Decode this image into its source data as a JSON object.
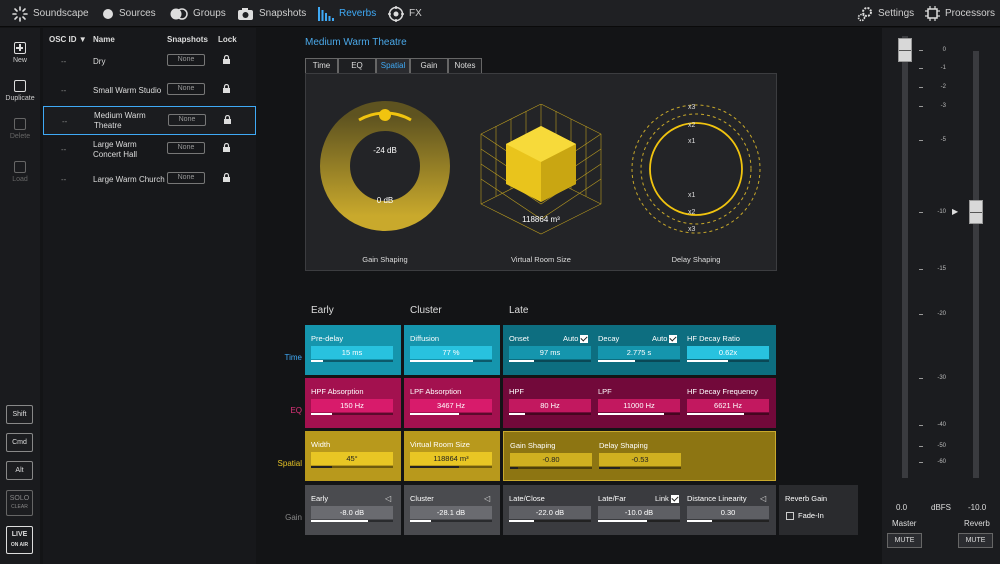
{
  "nav": {
    "soundscape": "Soundscape",
    "sources": "Sources",
    "groups": "Groups",
    "snapshots": "Snapshots",
    "reverbs": "Reverbs",
    "fx": "FX",
    "settings": "Settings",
    "processors": "Processors"
  },
  "leftbar": {
    "new": "New",
    "duplicate": "Duplicate",
    "delete": "Delete",
    "load": "Load",
    "shift": "Shift",
    "cmd": "Cmd",
    "alt": "Alt",
    "solo": "SOLO",
    "clear": "CLEAR",
    "live": "LIVE",
    "on_air": "ON AIR"
  },
  "list": {
    "headers": {
      "osc": "OSC ID",
      "name": "Name",
      "snapshots": "Snapshots",
      "lock": "Lock"
    },
    "rows": [
      {
        "osc": "--",
        "name": "Dry",
        "snap": "None"
      },
      {
        "osc": "--",
        "name": "Small Warm Studio",
        "snap": "None"
      },
      {
        "osc": "--",
        "name": "Medium Warm Theatre",
        "snap": "None"
      },
      {
        "osc": "--",
        "name": "Large Warm Concert Hall",
        "snap": "None"
      },
      {
        "osc": "--",
        "name": "Large Warm Church",
        "snap": "None"
      }
    ]
  },
  "main": {
    "title": "Medium Warm Theatre",
    "tabs": [
      "Time",
      "EQ",
      "Spatial",
      "Gain",
      "Notes"
    ],
    "viz": {
      "gain_top": "-24 dB",
      "gain_bottom": "0 dB",
      "gain_label": "Gain Shaping",
      "room_value": "118864 m³",
      "room_label": "Virtual Room Size",
      "delay_label": "Delay Shaping",
      "delay_marks": [
        "x3",
        "x2",
        "x1",
        "x1",
        "x2",
        "x3"
      ]
    },
    "sections": {
      "early": "Early",
      "cluster": "Cluster",
      "late": "Late"
    },
    "row_labels": {
      "time": "Time",
      "eq": "EQ",
      "spatial": "Spatial",
      "gain": "Gain"
    },
    "time": {
      "predelay": {
        "label": "Pre-delay",
        "value": "15 ms",
        "level": 0.15
      },
      "diffusion": {
        "label": "Diffusion",
        "value": "77 %",
        "level": 0.77
      },
      "onset": {
        "label": "Onset",
        "auto": "Auto",
        "value": "97 ms",
        "level": 0.3
      },
      "decay": {
        "label": "Decay",
        "auto": "Auto",
        "value": "2.775 s",
        "level": 0.45
      },
      "hfratio": {
        "label": "HF Decay Ratio",
        "value": "0.62x",
        "level": 0.5
      }
    },
    "eq": {
      "hpfabs": {
        "label": "HPF Absorption",
        "value": "150 Hz",
        "level": 0.25
      },
      "lpfabs": {
        "label": "LPF Absorption",
        "value": "3467 Hz",
        "level": 0.6
      },
      "hpf": {
        "label": "HPF",
        "value": "80 Hz",
        "level": 0.2
      },
      "lpf": {
        "label": "LPF",
        "value": "11000 Hz",
        "level": 0.8
      },
      "hfdecfreq": {
        "label": "HF Decay Frequency",
        "value": "6621 Hz",
        "level": 0.7
      }
    },
    "spatial": {
      "width": {
        "label": "Width",
        "value": "45°",
        "level": 0.25
      },
      "roomsize": {
        "label": "Virtual Room Size",
        "value": "118864 m³",
        "level": 0.6
      },
      "gainshaping": {
        "label": "Gain Shaping",
        "value": "-0.80",
        "level": 0.1
      },
      "delayshaping": {
        "label": "Delay Shaping",
        "value": "-0.53",
        "level": 0.25
      }
    },
    "gain": {
      "early": {
        "label": "Early",
        "value": "-8.0 dB",
        "level": 0.7
      },
      "cluster": {
        "label": "Cluster",
        "value": "-28.1 dB",
        "level": 0.25
      },
      "lateclose": {
        "label": "Late/Close",
        "value": "-22.0 dB",
        "level": 0.3
      },
      "latefar": {
        "label": "Late/Far",
        "link": "Link",
        "value": "-10.0 dB",
        "level": 0.6
      },
      "distlin": {
        "label": "Distance Linearity",
        "value": "0.30",
        "level": 0.3
      },
      "reverbgain": {
        "label": "Reverb Gain",
        "fadein": "Fade-In"
      }
    }
  },
  "master": {
    "scale": [
      "0",
      "-1",
      "-2",
      "-3",
      "-5",
      "-10",
      "-15",
      "-20",
      "-30",
      "-40",
      "-50",
      "-60"
    ],
    "master_value": "0.0",
    "unit": "dBFS",
    "reverb_value": "-10.0",
    "master_label": "Master",
    "reverb_label": "Reverb",
    "mute": "MUTE"
  }
}
